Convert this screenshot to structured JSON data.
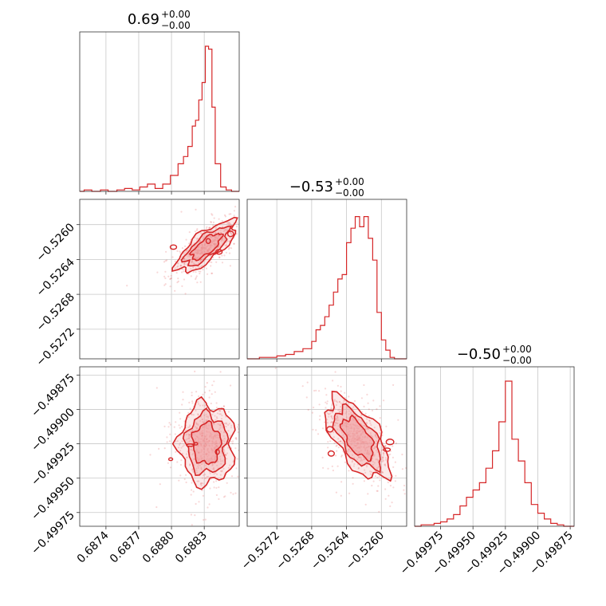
{
  "figure": {
    "type": "corner plot",
    "color": "#d62728",
    "fill_color": "#ef9a9b",
    "grid": true
  },
  "titles": [
    {
      "main": "0.69",
      "upper": "+0.00",
      "lower": "−0.00"
    },
    {
      "main": "−0.53",
      "upper": "+0.00",
      "lower": "−0.00"
    },
    {
      "main": "−0.50",
      "upper": "+0.00",
      "lower": "−0.00"
    }
  ],
  "ticks": {
    "p1": [
      {
        "v": 0.6874,
        "label": "0.6874"
      },
      {
        "v": 0.6877,
        "label": "0.6877"
      },
      {
        "v": 0.688,
        "label": "0.6880"
      },
      {
        "v": 0.6883,
        "label": "0.6883"
      }
    ],
    "p2": [
      {
        "v": -0.5272,
        "label": "−0.5272"
      },
      {
        "v": -0.5268,
        "label": "−0.5268"
      },
      {
        "v": -0.5264,
        "label": "−0.5264"
      },
      {
        "v": -0.526,
        "label": "−0.5260"
      }
    ],
    "p3": [
      {
        "v": -0.49975,
        "label": "−0.49975"
      },
      {
        "v": -0.4995,
        "label": "−0.49950"
      },
      {
        "v": -0.49925,
        "label": "−0.49925"
      },
      {
        "v": -0.499,
        "label": "−0.49900"
      },
      {
        "v": -0.49875,
        "label": "−0.49875"
      }
    ]
  },
  "chart_data": [
    {
      "type": "histogram",
      "panel": "p1",
      "xlim": [
        0.68716,
        0.68862
      ],
      "bins": [
        [
          0.68718,
          0.6872,
          0.0
        ],
        [
          0.6872,
          0.68727,
          0.01
        ],
        [
          0.68727,
          0.68735,
          0.0
        ],
        [
          0.68735,
          0.68742,
          0.01
        ],
        [
          0.68742,
          0.6875,
          0.0
        ],
        [
          0.6875,
          0.68757,
          0.01
        ],
        [
          0.68757,
          0.68764,
          0.02
        ],
        [
          0.68764,
          0.68771,
          0.01
        ],
        [
          0.68771,
          0.68778,
          0.03
        ],
        [
          0.68778,
          0.68785,
          0.05
        ],
        [
          0.68785,
          0.68792,
          0.02
        ],
        [
          0.68792,
          0.68799,
          0.05
        ],
        [
          0.68799,
          0.68806,
          0.11
        ],
        [
          0.68806,
          0.68811,
          0.19
        ],
        [
          0.68811,
          0.68815,
          0.24
        ],
        [
          0.68815,
          0.68819,
          0.31
        ],
        [
          0.68819,
          0.68822,
          0.45
        ],
        [
          0.68822,
          0.68825,
          0.49
        ],
        [
          0.68825,
          0.68828,
          0.63
        ],
        [
          0.68828,
          0.68831,
          0.75
        ],
        [
          0.68831,
          0.68834,
          1.0
        ],
        [
          0.68834,
          0.68837,
          0.98
        ],
        [
          0.68837,
          0.6884,
          0.58
        ],
        [
          0.6884,
          0.68845,
          0.19
        ],
        [
          0.68845,
          0.6885,
          0.03
        ],
        [
          0.6885,
          0.68855,
          0.01
        ],
        [
          0.68855,
          0.6886,
          0.0
        ]
      ]
    },
    {
      "type": "histogram",
      "panel": "p2",
      "xlim": [
        -0.52754,
        -0.52571
      ],
      "bins": [
        [
          -0.5275,
          -0.5274,
          0.0
        ],
        [
          -0.5274,
          -0.5273,
          0.01
        ],
        [
          -0.5273,
          -0.5272,
          0.01
        ],
        [
          -0.5272,
          -0.5271,
          0.02
        ],
        [
          -0.5271,
          -0.527,
          0.03
        ],
        [
          -0.527,
          -0.5269,
          0.05
        ],
        [
          -0.5269,
          -0.5268,
          0.07
        ],
        [
          -0.5268,
          -0.52675,
          0.12
        ],
        [
          -0.52675,
          -0.5267,
          0.2
        ],
        [
          -0.5267,
          -0.52665,
          0.23
        ],
        [
          -0.52665,
          -0.5266,
          0.29
        ],
        [
          -0.5266,
          -0.52655,
          0.37
        ],
        [
          -0.52655,
          -0.5265,
          0.46
        ],
        [
          -0.5265,
          -0.52645,
          0.55
        ],
        [
          -0.52645,
          -0.5264,
          0.58
        ],
        [
          -0.5264,
          -0.52635,
          0.8
        ],
        [
          -0.52635,
          -0.5263,
          0.9
        ],
        [
          -0.5263,
          -0.52625,
          0.98
        ],
        [
          -0.52625,
          -0.5262,
          0.91
        ],
        [
          -0.5262,
          -0.52615,
          0.98
        ],
        [
          -0.52615,
          -0.5261,
          0.83
        ],
        [
          -0.5261,
          -0.52605,
          0.68
        ],
        [
          -0.52605,
          -0.526,
          0.32
        ],
        [
          -0.526,
          -0.52595,
          0.13
        ],
        [
          -0.52595,
          -0.5259,
          0.06
        ],
        [
          -0.5259,
          -0.52585,
          0.01
        ],
        [
          -0.52585,
          -0.5258,
          0.0
        ]
      ]
    },
    {
      "type": "histogram",
      "panel": "p3",
      "xlim": [
        -0.49995,
        -0.49872
      ],
      "bins": [
        [
          -0.49995,
          -0.4999,
          0.0
        ],
        [
          -0.4999,
          -0.49985,
          0.01
        ],
        [
          -0.49985,
          -0.4998,
          0.01
        ],
        [
          -0.4998,
          -0.49975,
          0.02
        ],
        [
          -0.49975,
          -0.4997,
          0.03
        ],
        [
          -0.4997,
          -0.49965,
          0.05
        ],
        [
          -0.49965,
          -0.4996,
          0.08
        ],
        [
          -0.4996,
          -0.49955,
          0.14
        ],
        [
          -0.49955,
          -0.4995,
          0.2
        ],
        [
          -0.4995,
          -0.49945,
          0.25
        ],
        [
          -0.49945,
          -0.4994,
          0.3
        ],
        [
          -0.4994,
          -0.49935,
          0.4
        ],
        [
          -0.49935,
          -0.4993,
          0.52
        ],
        [
          -0.4993,
          -0.49925,
          0.72
        ],
        [
          -0.49925,
          -0.4992,
          1.0
        ],
        [
          -0.4992,
          -0.49915,
          0.6
        ],
        [
          -0.49915,
          -0.4991,
          0.45
        ],
        [
          -0.4991,
          -0.49905,
          0.3
        ],
        [
          -0.49905,
          -0.499,
          0.15
        ],
        [
          -0.499,
          -0.49895,
          0.09
        ],
        [
          -0.49895,
          -0.4989,
          0.05
        ],
        [
          -0.4989,
          -0.49885,
          0.02
        ],
        [
          -0.49885,
          -0.4988,
          0.01
        ],
        [
          -0.4988,
          -0.49875,
          0.0
        ]
      ]
    },
    {
      "type": "scatter-density",
      "panel": "p1-vs-p2",
      "xlim": [
        0.68716,
        0.68862
      ],
      "ylim": [
        -0.52754,
        -0.52571
      ],
      "mean": [
        0.68832,
        -0.52625
      ],
      "sd": [
        0.00013,
        0.00014
      ],
      "correlation": 0.75
    },
    {
      "type": "scatter-density",
      "panel": "p1-vs-p3",
      "xlim": [
        0.68716,
        0.68862
      ],
      "ylim": [
        -0.49985,
        -0.49869
      ],
      "mean": [
        0.68832,
        -0.49925
      ],
      "sd": [
        0.00012,
        0.00014
      ],
      "correlation": 0.0
    },
    {
      "type": "scatter-density",
      "panel": "p2-vs-p3",
      "xlim": [
        -0.52754,
        -0.52571
      ],
      "ylim": [
        -0.49985,
        -0.49869
      ],
      "mean": [
        -0.52627,
        -0.49921
      ],
      "sd": [
        0.00017,
        0.00014
      ],
      "correlation": -0.6
    }
  ]
}
